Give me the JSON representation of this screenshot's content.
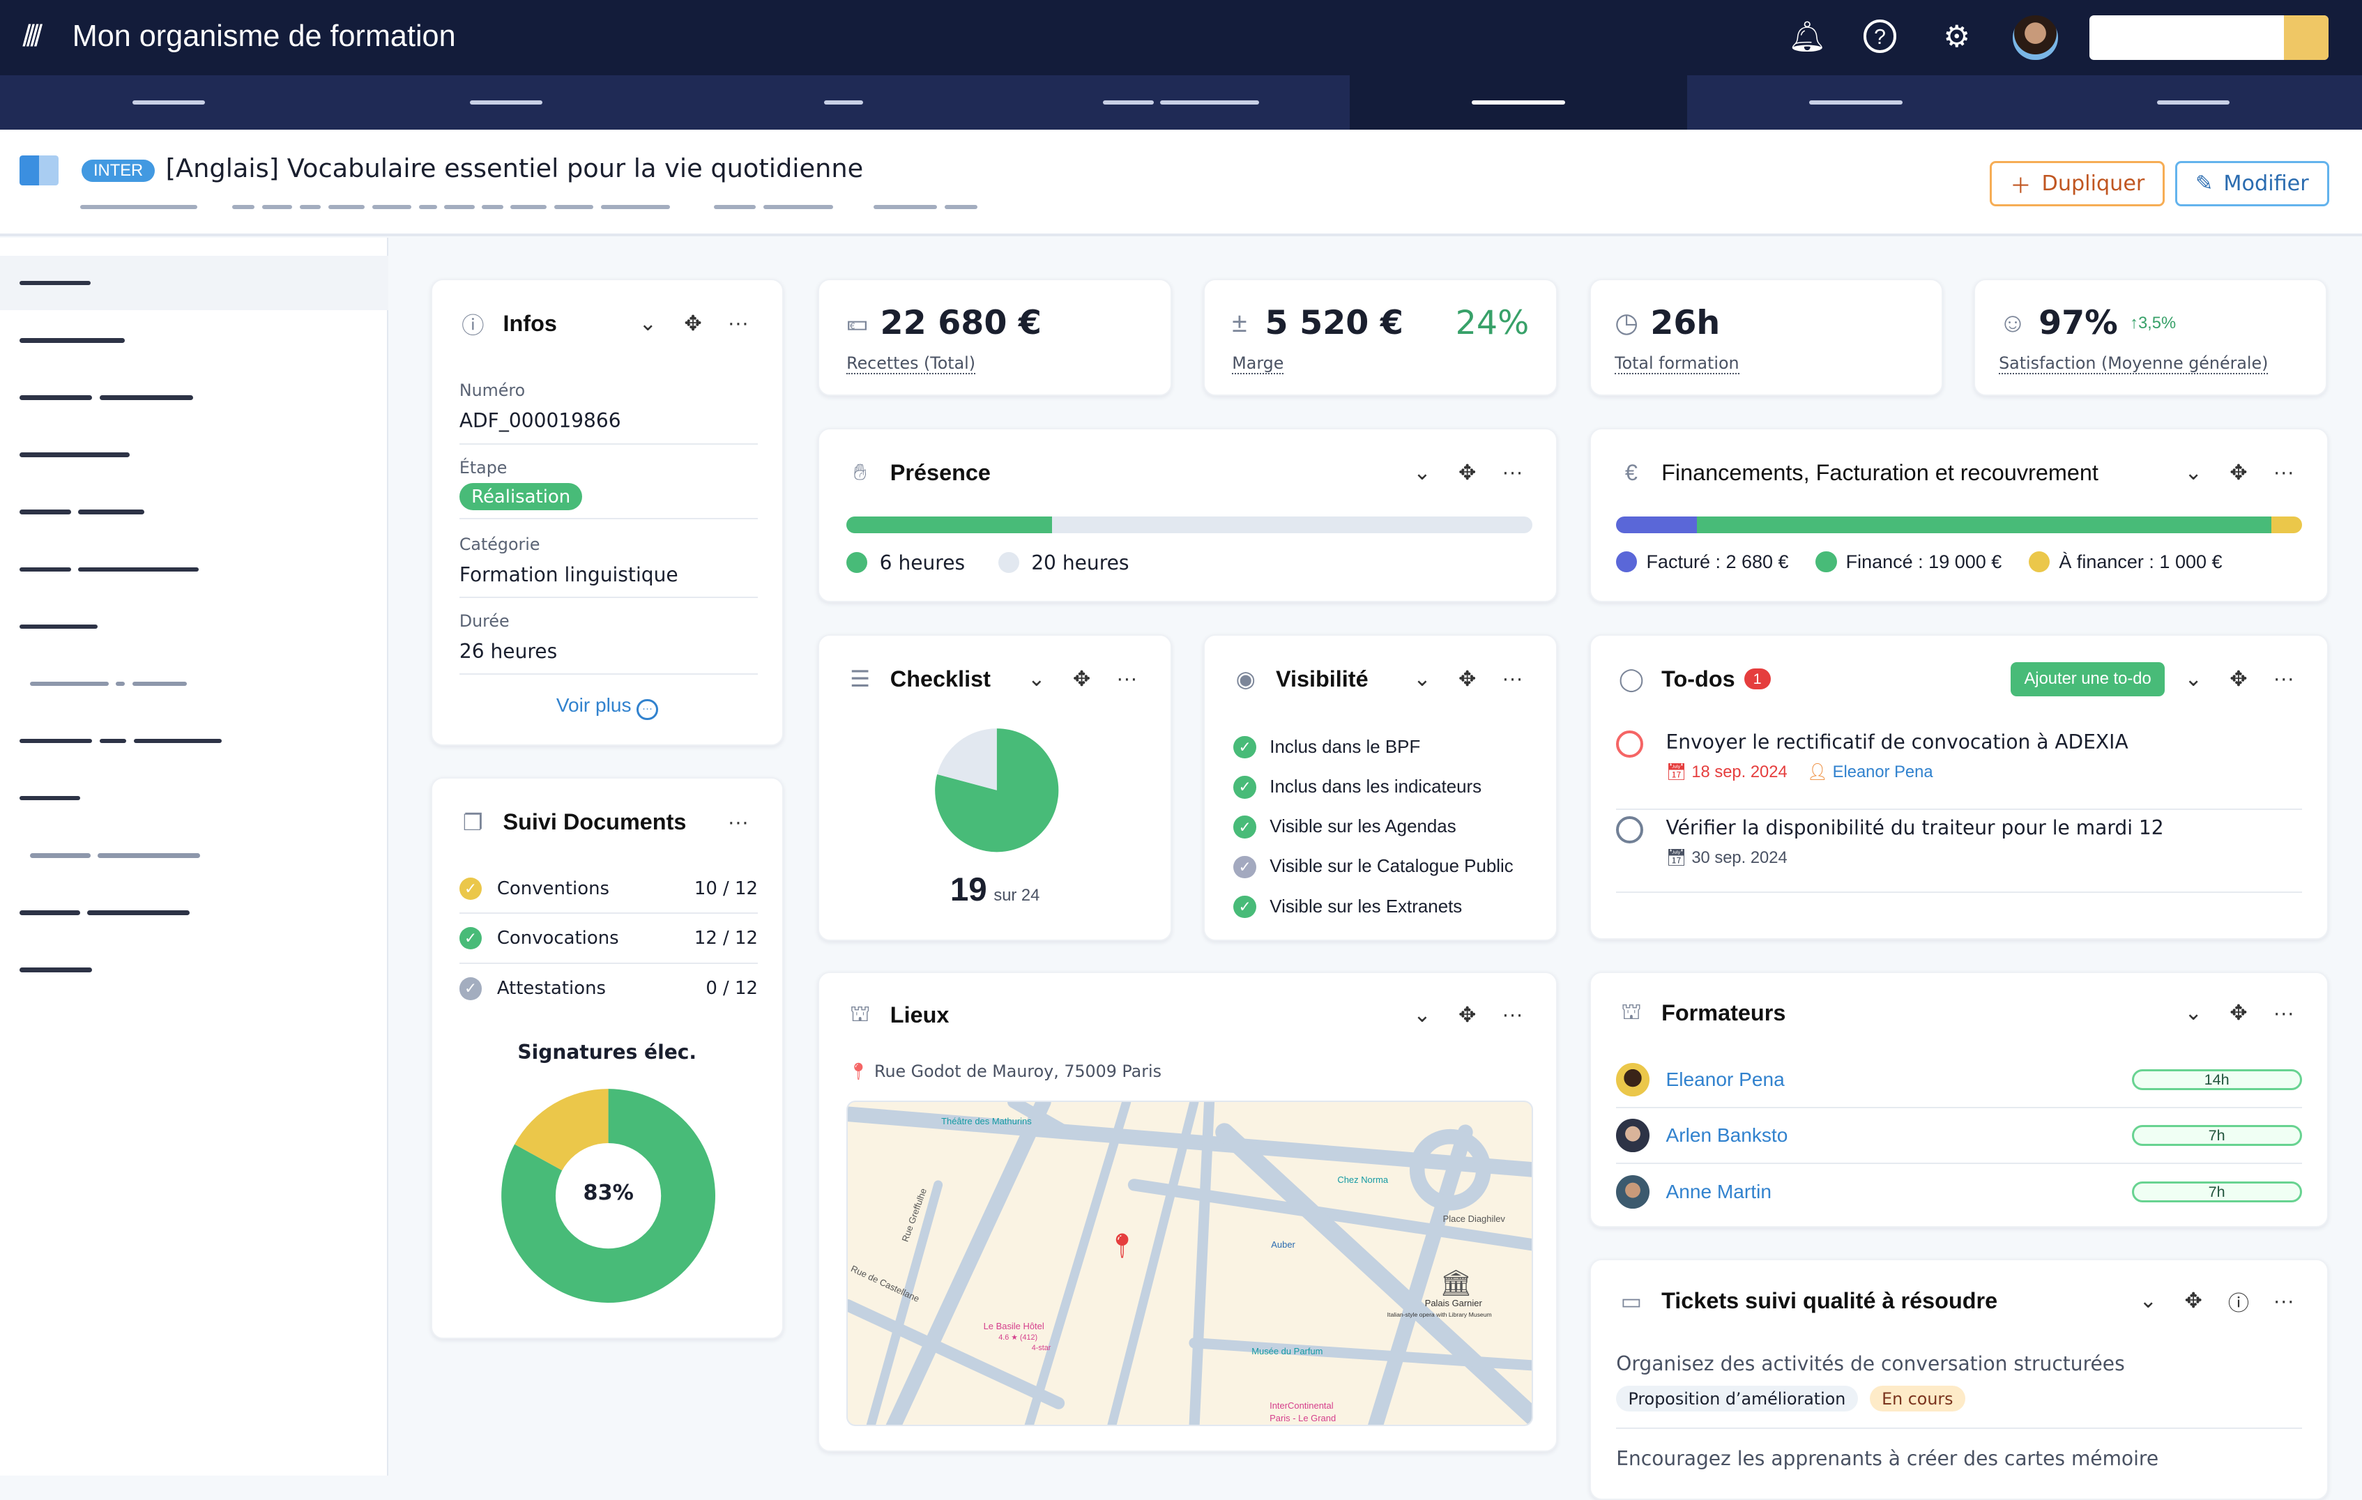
{
  "app": {
    "title": "Mon organisme de formation"
  },
  "header": {
    "badge": "INTER",
    "title": "[Anglais] Vocabulaire essentiel pour la vie quotidienne",
    "duplicate_label": "Dupliquer",
    "edit_label": "Modifier"
  },
  "infos": {
    "title": "Infos",
    "fields": [
      {
        "label": "Numéro",
        "value": "ADF_000019866"
      },
      {
        "label": "Étape",
        "value": "Réalisation"
      },
      {
        "label": "Catégorie",
        "value": "Formation linguistique"
      },
      {
        "label": "Durée",
        "value": "26 heures"
      }
    ],
    "more": "Voir plus"
  },
  "documents": {
    "title": "Suivi Documents",
    "items": [
      {
        "label": "Conventions",
        "count": "10 / 12",
        "color": "#ebc74a"
      },
      {
        "label": "Convocations",
        "count": "12 / 12",
        "color": "#48bb78"
      },
      {
        "label": "Attestations",
        "count": "0 / 12",
        "color": "#a3adbf"
      }
    ],
    "signatures_title": "Signatures élec.",
    "signatures_pct": "83%",
    "signatures_value": 83
  },
  "kpis": [
    {
      "value": "22 680 €",
      "label": "Recettes (Total)"
    },
    {
      "value": "5 520 €",
      "label": "Marge",
      "extra": "24%"
    },
    {
      "value": "26h",
      "label": "Total formation"
    },
    {
      "value": "97%",
      "label": "Satisfaction (Moyenne générale)",
      "trend": "3,5%"
    }
  ],
  "presence": {
    "title": "Présence",
    "done": "6 heures",
    "total": "20 heures",
    "done_hours": 6,
    "total_hours": 20
  },
  "finance": {
    "title": "Financements, Facturation et recouvrement",
    "items": [
      {
        "label": "Facturé : 2 680 €",
        "value": 2680,
        "color": "#5a67d8"
      },
      {
        "label": "Financé : 19 000 €",
        "value": 19000,
        "color": "#48bb78"
      },
      {
        "label": "À financer : 1 000 €",
        "value": 1000,
        "color": "#ebc74a"
      }
    ]
  },
  "checklist": {
    "title": "Checklist",
    "done": "19",
    "total_label": "sur 24",
    "done_value": 19,
    "total_value": 24
  },
  "visibility": {
    "title": "Visibilité",
    "items": [
      {
        "label": "Inclus dans le BPF",
        "on": true
      },
      {
        "label": "Inclus dans les indicateurs",
        "on": true
      },
      {
        "label": "Visible sur les Agendas",
        "on": true
      },
      {
        "label": "Visible sur le Catalogue Public",
        "on": false
      },
      {
        "label": "Visible sur les Extranets",
        "on": true
      }
    ]
  },
  "todos": {
    "title": "To-dos",
    "count": "1",
    "add_label": "Ajouter une to-do",
    "items": [
      {
        "text": "Envoyer le rectificatif de convocation à ADEXIA",
        "date": "18 sep. 2024",
        "assignee": "Eleanor Pena",
        "overdue": true
      },
      {
        "text": "Vérifier la disponibilité du traiteur pour le mardi 12",
        "date": "30 sep. 2024",
        "overdue": false
      }
    ]
  },
  "lieux": {
    "title": "Lieux",
    "address": "Rue Godot de Mauroy, 75009 Paris",
    "map_labels": [
      "Théâtre des Mathurins",
      "Chez Norma",
      "Place Diaghilev",
      "Rue Greffulhe",
      "Rue de Castellane",
      "Auber",
      "Palais Garnier",
      "Italian-style opera with Library Museum",
      "Le Basile Hôtel",
      "4.6 ★ (412)",
      "4-star",
      "Musée du Parfum",
      "InterContinental",
      "Paris - Le Grand"
    ]
  },
  "formateurs": {
    "title": "Formateurs",
    "items": [
      {
        "name": "Eleanor Pena",
        "hours": "14h"
      },
      {
        "name": "Arlen Banksto",
        "hours": "7h"
      },
      {
        "name": "Anne Martin",
        "hours": "7h"
      }
    ]
  },
  "tickets": {
    "title": "Tickets suivi qualité à résoudre",
    "items": [
      {
        "text": "Organisez des activités de conversation structurées",
        "tag": "Proposition d’amélioration",
        "status": "En cours"
      },
      {
        "text": "Encouragez les apprenants à créer des cartes mémoire"
      }
    ]
  }
}
